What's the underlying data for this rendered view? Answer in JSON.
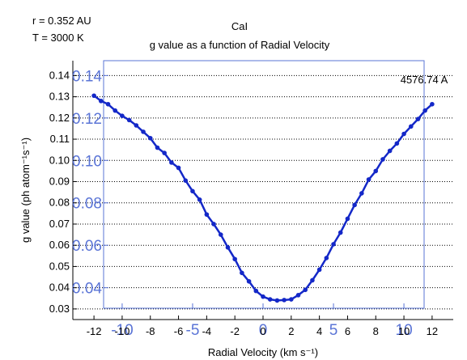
{
  "header": {
    "r_label": "r = 0.352 AU",
    "t_label": "T = 3000 K",
    "species": "CaI",
    "title": "g value as a function of Radial Velocity",
    "wavelength": "4576.74 A"
  },
  "chart_data": {
    "type": "line",
    "title": "g value as a function of Radial Velocity",
    "xlabel": "Radial Velocity (km s⁻¹)",
    "ylabel": "g value (ph atom⁻¹s⁻¹)",
    "xlim": [
      -13.5,
      13.5
    ],
    "ylim": [
      0.025,
      0.147
    ],
    "grid": "horizontal dotted",
    "x_ticks": [
      "-12",
      "-10",
      "-8",
      "-6",
      "-4",
      "-2",
      "0",
      "2",
      "4",
      "6",
      "8",
      "10",
      "12"
    ],
    "x_ticks_overlay": [
      "-10",
      "-5",
      "0",
      "5",
      "10"
    ],
    "y_ticks": [
      "0.03",
      "0.04",
      "0.05",
      "0.06",
      "0.07",
      "0.08",
      "0.09",
      "0.10",
      "0.11",
      "0.12",
      "0.13",
      "0.14"
    ],
    "y_ticks_overlay": [
      "0.04",
      "0.06",
      "0.08",
      "0.10",
      "0.12",
      "0.14"
    ],
    "series": [
      {
        "color": "#1428c8",
        "x": [
          -12.0,
          -11.5,
          -11.0,
          -10.5,
          -10.0,
          -9.5,
          -9.0,
          -8.5,
          -8.0,
          -7.5,
          -7.0,
          -6.5,
          -6.0,
          -5.5,
          -5.0,
          -4.5,
          -4.0,
          -3.5,
          -3.0,
          -2.5,
          -2.0,
          -1.5,
          -1.0,
          -0.5,
          0.0,
          0.5,
          1.0,
          1.5,
          2.0,
          2.5,
          3.0,
          3.5,
          4.0,
          4.5,
          5.0,
          5.5,
          6.0,
          6.5,
          7.0,
          7.5,
          8.0,
          8.5,
          9.0,
          9.5,
          10.0,
          10.5,
          11.0,
          11.5,
          12.0
        ],
        "y": [
          0.1305,
          0.128,
          0.1265,
          0.1235,
          0.121,
          0.119,
          0.1165,
          0.1135,
          0.1105,
          0.106,
          0.1035,
          0.099,
          0.0965,
          0.0905,
          0.0855,
          0.0815,
          0.0745,
          0.07,
          0.065,
          0.059,
          0.0535,
          0.047,
          0.043,
          0.0385,
          0.0358,
          0.0345,
          0.034,
          0.0342,
          0.0345,
          0.0365,
          0.039,
          0.0435,
          0.0485,
          0.054,
          0.0605,
          0.066,
          0.0725,
          0.079,
          0.0845,
          0.091,
          0.095,
          0.1005,
          0.1045,
          0.108,
          0.1125,
          0.116,
          0.1195,
          0.1235,
          0.1265
        ]
      }
    ]
  }
}
